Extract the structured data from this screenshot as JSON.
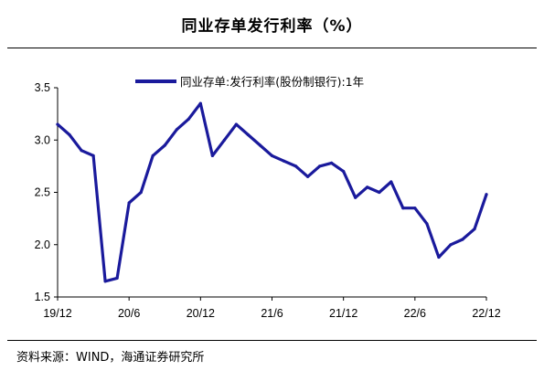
{
  "title": "同业存单发行利率（%）",
  "source": "资料来源：WIND，海通证券研究所",
  "colors": {
    "series": "#1a1a9c",
    "axis": "#000000"
  },
  "chart_data": {
    "type": "line",
    "title": "同业存单发行利率（%）",
    "xlabel": "",
    "ylabel": "",
    "ylim": [
      1.5,
      3.5
    ],
    "y_ticks": [
      "1.5",
      "2.0",
      "2.5",
      "3.0",
      "3.5"
    ],
    "x_ticks": [
      "19/12",
      "20/6",
      "20/12",
      "21/6",
      "21/12",
      "22/6",
      "22/12"
    ],
    "x_range": [
      "2019-12",
      "2022-12"
    ],
    "legend": "top-left",
    "grid": false,
    "series": [
      {
        "name": "同业存单:发行利率(股份制银行):1年",
        "x": [
          "2019-12",
          "2020-01",
          "2020-02",
          "2020-03",
          "2020-04",
          "2020-05",
          "2020-06",
          "2020-07",
          "2020-08",
          "2020-09",
          "2020-10",
          "2020-11",
          "2020-12",
          "2021-01",
          "2021-02",
          "2021-03",
          "2021-04",
          "2021-05",
          "2021-06",
          "2021-07",
          "2021-08",
          "2021-09",
          "2021-10",
          "2021-11",
          "2021-12",
          "2022-01",
          "2022-02",
          "2022-03",
          "2022-04",
          "2022-05",
          "2022-06",
          "2022-07",
          "2022-08",
          "2022-09",
          "2022-10",
          "2022-11",
          "2022-12"
        ],
        "values": [
          3.15,
          3.05,
          2.9,
          2.85,
          1.65,
          1.68,
          2.4,
          2.5,
          2.85,
          2.95,
          3.1,
          3.2,
          3.35,
          2.85,
          3.0,
          3.15,
          3.05,
          2.95,
          2.85,
          2.8,
          2.75,
          2.65,
          2.75,
          2.78,
          2.7,
          2.45,
          2.55,
          2.5,
          2.6,
          2.35,
          2.35,
          2.2,
          1.88,
          2.0,
          2.05,
          2.15,
          2.48
        ]
      }
    ]
  }
}
